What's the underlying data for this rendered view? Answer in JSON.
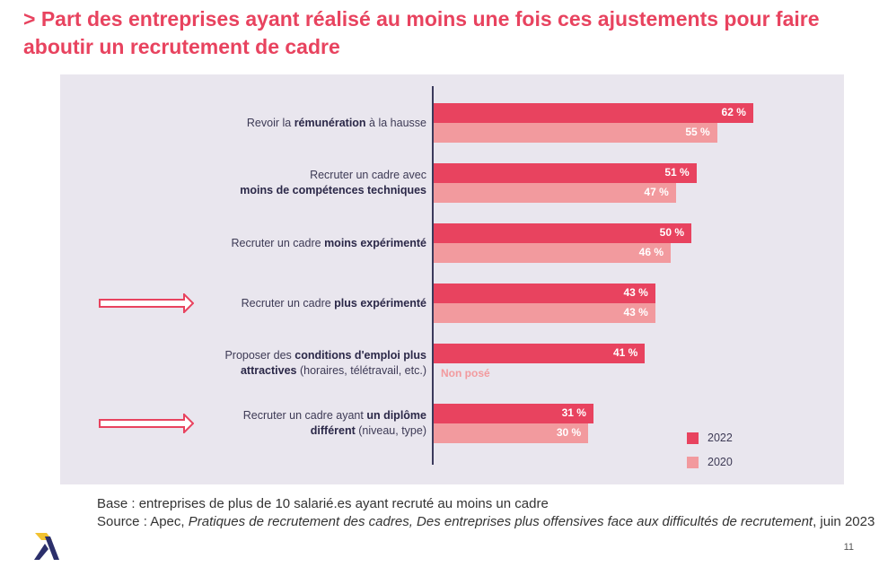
{
  "title": "> Part des entreprises ayant réalisé au moins une fois ces ajustements pour faire aboutir un recrutement de cadre",
  "chart_data": {
    "type": "bar",
    "orientation": "horizontal",
    "categories": [
      [
        {
          "t": "Revoir la "
        },
        {
          "t": "rémunération",
          "b": true
        },
        {
          "t": " à la hausse"
        }
      ],
      [
        {
          "t": "Recruter un cadre avec "
        },
        {
          "br": true
        },
        {
          "t": "moins de compétences techniques",
          "b": true
        }
      ],
      [
        {
          "t": "Recruter un cadre "
        },
        {
          "t": "moins expérimenté",
          "b": true
        }
      ],
      [
        {
          "t": "Recruter un cadre "
        },
        {
          "t": "plus expérimenté",
          "b": true
        }
      ],
      [
        {
          "t": "Proposer des "
        },
        {
          "t": "conditions d'emploi plus",
          "b": true
        },
        {
          "br": true
        },
        {
          "t": "attractives",
          "b": true
        },
        {
          "t": " (horaires, télétravail, etc.)"
        }
      ],
      [
        {
          "t": "Recruter un cadre ayant "
        },
        {
          "t": "un diplôme",
          "b": true
        },
        {
          "br": true
        },
        {
          "t": "différent",
          "b": true
        },
        {
          "t": " (niveau, type)"
        }
      ]
    ],
    "series": [
      {
        "name": "2022",
        "color": "#e8435f",
        "values": [
          62,
          51,
          50,
          43,
          41,
          31
        ],
        "labels": [
          "62 %",
          "51 %",
          "50 %",
          "43 %",
          "41 %",
          "31 %"
        ]
      },
      {
        "name": "2020",
        "color": "#f29a9e",
        "values": [
          55,
          47,
          46,
          43,
          null,
          30
        ],
        "labels": [
          "55 %",
          "47 %",
          "46 %",
          "43 %",
          "Non posé",
          "30 %"
        ]
      }
    ],
    "highlighted_categories": [
      3,
      5
    ],
    "legend_position": "bottom-right",
    "grid": false
  },
  "notes": {
    "base": "Base : entreprises de plus de 10 salarié.es ayant recruté au moins un cadre",
    "source_prefix": "Source : Apec, ",
    "source_italic": "Pratiques de recrutement des cadres, Des entreprises plus offensives face aux difficultés de recrutement",
    "source_suffix": ", juin  2023"
  },
  "page_number": "11",
  "logo_text": "Apec"
}
